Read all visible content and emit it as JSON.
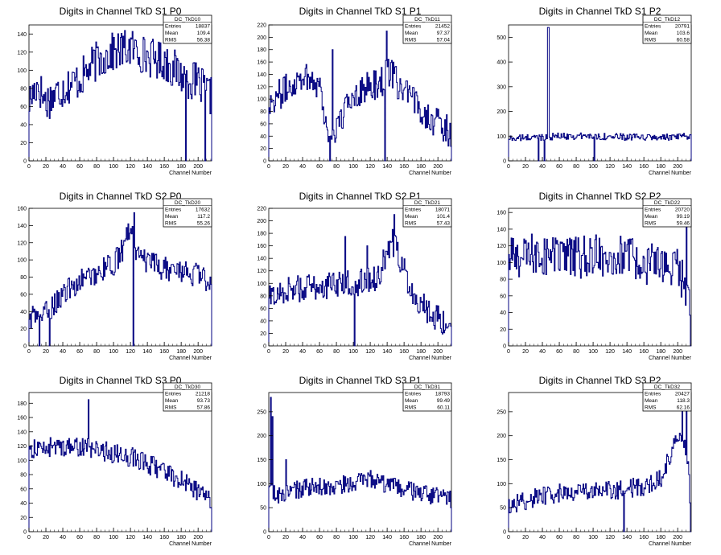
{
  "chart_data": [
    {
      "type": "histogram",
      "title": "Digits in Channel TkD S1 P0",
      "xlabel": "Channel Number",
      "xlim": [
        0,
        216
      ],
      "ylim": [
        0,
        150
      ],
      "xticks": [
        "0",
        "20",
        "40",
        "60",
        "80",
        "100",
        "120",
        "140",
        "160",
        "180",
        "200"
      ],
      "yticks": [
        "0",
        "20",
        "40",
        "60",
        "80",
        "100",
        "120",
        "140"
      ],
      "stats": {
        "name": "DC_TkD10",
        "rows": [
          [
            "Entries",
            "18837"
          ],
          [
            "Mean",
            "109.4"
          ],
          [
            "RMS",
            "56.38"
          ]
        ]
      },
      "series": [
        {
          "color": "#000080",
          "profile": [
            [
              0,
              65
            ],
            [
              10,
              85
            ],
            [
              20,
              65
            ],
            [
              40,
              80
            ],
            [
              60,
              90
            ],
            [
              80,
              110
            ],
            [
              100,
              120
            ],
            [
              120,
              125
            ],
            [
              140,
              115
            ],
            [
              160,
              110
            ],
            [
              180,
              95
            ],
            [
              200,
              85
            ],
            [
              216,
              70
            ]
          ],
          "amp": 22,
          "spikes": [
            [
              185,
              0
            ],
            [
              208,
              0
            ]
          ]
        }
      ]
    },
    {
      "type": "histogram",
      "title": "Digits in Channel TkD S1 P1",
      "xlabel": "Channel Number",
      "xlim": [
        0,
        216
      ],
      "ylim": [
        0,
        220
      ],
      "xticks": [
        "0",
        "20",
        "40",
        "60",
        "80",
        "100",
        "120",
        "140",
        "160",
        "180",
        "200"
      ],
      "yticks": [
        "0",
        "20",
        "40",
        "60",
        "80",
        "100",
        "120",
        "140",
        "160",
        "180",
        "200",
        "220"
      ],
      "stats": {
        "name": "DC_TkD11",
        "rows": [
          [
            "Entries",
            "21452"
          ],
          [
            "Mean",
            "97.37"
          ],
          [
            "RMS",
            "57.04"
          ]
        ]
      },
      "series": [
        {
          "color": "#000080",
          "profile": [
            [
              0,
              95
            ],
            [
              20,
              115
            ],
            [
              40,
              140
            ],
            [
              60,
              125
            ],
            [
              70,
              40
            ],
            [
              80,
              50
            ],
            [
              100,
              110
            ],
            [
              120,
              120
            ],
            [
              135,
              130
            ],
            [
              140,
              150
            ],
            [
              160,
              110
            ],
            [
              180,
              85
            ],
            [
              200,
              60
            ],
            [
              216,
              45
            ]
          ],
          "amp": 25,
          "spikes": [
            [
              72,
              0
            ],
            [
              137,
              0
            ],
            [
              139,
              210
            ],
            [
              75,
              180
            ]
          ]
        }
      ]
    },
    {
      "type": "histogram",
      "title": "Digits in Channel TkD S1 P2",
      "xlabel": "Channel Number",
      "xlim": [
        0,
        216
      ],
      "ylim": [
        0,
        550
      ],
      "xticks": [
        "0",
        "20",
        "40",
        "60",
        "80",
        "100",
        "120",
        "140",
        "160",
        "180",
        "200"
      ],
      "yticks": [
        "0",
        "100",
        "200",
        "300",
        "400",
        "500"
      ],
      "stats": {
        "name": "DC_TkD12",
        "rows": [
          [
            "Entries",
            "20791"
          ],
          [
            "Mean",
            "103.6"
          ],
          [
            "RMS",
            "60.58"
          ]
        ]
      },
      "series": [
        {
          "color": "#000080",
          "profile": [
            [
              0,
              90
            ],
            [
              30,
              95
            ],
            [
              60,
              100
            ],
            [
              100,
              100
            ],
            [
              150,
              95
            ],
            [
              200,
              95
            ],
            [
              216,
              100
            ]
          ],
          "amp": 14,
          "spikes": [
            [
              46,
              540
            ],
            [
              47,
              540
            ],
            [
              35,
              0
            ],
            [
              42,
              0
            ],
            [
              101,
              0
            ]
          ]
        }
      ]
    },
    {
      "type": "histogram",
      "title": "Digits in Channel TkD S2 P0",
      "xlabel": "Channel Number",
      "xlim": [
        0,
        216
      ],
      "ylim": [
        0,
        160
      ],
      "xticks": [
        "0",
        "20",
        "40",
        "60",
        "80",
        "100",
        "120",
        "140",
        "160",
        "180",
        "200"
      ],
      "yticks": [
        "0",
        "20",
        "40",
        "60",
        "80",
        "100",
        "120",
        "140",
        "160"
      ],
      "stats": {
        "name": "DC_TkD20",
        "rows": [
          [
            "Entries",
            "17632"
          ],
          [
            "Mean",
            "117.2"
          ],
          [
            "RMS",
            "55.26"
          ]
        ]
      },
      "series": [
        {
          "color": "#000080",
          "profile": [
            [
              0,
              32
            ],
            [
              20,
              38
            ],
            [
              40,
              60
            ],
            [
              60,
              75
            ],
            [
              80,
              85
            ],
            [
              100,
              95
            ],
            [
              110,
              110
            ],
            [
              120,
              140
            ],
            [
              130,
              100
            ],
            [
              160,
              90
            ],
            [
              190,
              85
            ],
            [
              216,
              75
            ]
          ],
          "amp": 14,
          "spikes": [
            [
              12,
              0
            ],
            [
              24,
              0
            ],
            [
              123,
              0
            ],
            [
              124,
              155
            ]
          ]
        }
      ]
    },
    {
      "type": "histogram",
      "title": "Digits in Channel TkD S2 P1",
      "xlabel": "Channel Number",
      "xlim": [
        0,
        216
      ],
      "ylim": [
        0,
        220
      ],
      "xticks": [
        "0",
        "20",
        "40",
        "60",
        "80",
        "100",
        "120",
        "140",
        "160",
        "180",
        "200"
      ],
      "yticks": [
        "0",
        "20",
        "40",
        "60",
        "80",
        "100",
        "120",
        "140",
        "160",
        "180",
        "200",
        "220"
      ],
      "stats": {
        "name": "DC_TkD21",
        "rows": [
          [
            "Entries",
            "18071"
          ],
          [
            "Mean",
            "101.4"
          ],
          [
            "RMS",
            "57.43"
          ]
        ]
      },
      "series": [
        {
          "color": "#000080",
          "profile": [
            [
              0,
              75
            ],
            [
              20,
              90
            ],
            [
              60,
              95
            ],
            [
              100,
              100
            ],
            [
              130,
              110
            ],
            [
              145,
              170
            ],
            [
              155,
              140
            ],
            [
              170,
              85
            ],
            [
              190,
              55
            ],
            [
              216,
              30
            ]
          ],
          "amp": 22,
          "spikes": [
            [
              101,
              0
            ],
            [
              148,
              210
            ],
            [
              90,
              175
            ],
            [
              116,
              160
            ]
          ]
        }
      ]
    },
    {
      "type": "histogram",
      "title": "Digits in Channel TkD S2 P2",
      "xlabel": "Channel Number",
      "xlim": [
        0,
        216
      ],
      "ylim": [
        0,
        165
      ],
      "xticks": [
        "0",
        "20",
        "40",
        "60",
        "80",
        "100",
        "120",
        "140",
        "160",
        "180",
        "200"
      ],
      "yticks": [
        "0",
        "20",
        "40",
        "60",
        "80",
        "100",
        "120",
        "140",
        "160"
      ],
      "stats": {
        "name": "DC_TkD22",
        "rows": [
          [
            "Entries",
            "20720"
          ],
          [
            "Mean",
            "99.19"
          ],
          [
            "RMS",
            "59.46"
          ]
        ]
      },
      "series": [
        {
          "color": "#000080",
          "profile": [
            [
              0,
              105
            ],
            [
              40,
              110
            ],
            [
              80,
              105
            ],
            [
              120,
              110
            ],
            [
              160,
              100
            ],
            [
              200,
              90
            ],
            [
              212,
              70
            ],
            [
              216,
              0
            ]
          ],
          "amp": 26,
          "spikes": [
            [
              210,
              160
            ],
            [
              215,
              0
            ]
          ]
        }
      ]
    },
    {
      "type": "histogram",
      "title": "Digits in Channel TkD S3 P0",
      "xlabel": "Channel Number",
      "xlim": [
        0,
        216
      ],
      "ylim": [
        0,
        195
      ],
      "xticks": [
        "0",
        "20",
        "40",
        "60",
        "80",
        "100",
        "120",
        "140",
        "160",
        "180",
        "200"
      ],
      "yticks": [
        "0",
        "20",
        "40",
        "60",
        "80",
        "100",
        "120",
        "140",
        "160",
        "180"
      ],
      "stats": {
        "name": "DC_TkD30",
        "rows": [
          [
            "Entries",
            "21218"
          ],
          [
            "Mean",
            "93.73"
          ],
          [
            "RMS",
            "57.86"
          ]
        ]
      },
      "series": [
        {
          "color": "#000080",
          "profile": [
            [
              0,
              115
            ],
            [
              40,
              120
            ],
            [
              80,
              115
            ],
            [
              120,
              105
            ],
            [
              160,
              85
            ],
            [
              190,
              65
            ],
            [
              216,
              45
            ]
          ],
          "amp": 14,
          "spikes": [
            [
              70,
              185
            ]
          ]
        }
      ]
    },
    {
      "type": "histogram",
      "title": "Digits in Channel TkD S3 P1",
      "xlabel": "Channel Number",
      "xlim": [
        0,
        216
      ],
      "ylim": [
        0,
        290
      ],
      "xticks": [
        "0",
        "20",
        "40",
        "60",
        "80",
        "100",
        "120",
        "140",
        "160",
        "180",
        "200"
      ],
      "yticks": [
        "0",
        "50",
        "100",
        "150",
        "200",
        "250"
      ],
      "stats": {
        "name": "DC_TkD31",
        "rows": [
          [
            "Entries",
            "18793"
          ],
          [
            "Mean",
            "99.49"
          ],
          [
            "RMS",
            "60.11"
          ]
        ]
      },
      "series": [
        {
          "color": "#000080",
          "profile": [
            [
              0,
              85
            ],
            [
              10,
              75
            ],
            [
              40,
              90
            ],
            [
              80,
              95
            ],
            [
              100,
              100
            ],
            [
              120,
              110
            ],
            [
              140,
              95
            ],
            [
              180,
              80
            ],
            [
              216,
              65
            ]
          ],
          "amp": 20,
          "spikes": [
            [
              2,
              280
            ],
            [
              4,
              240
            ],
            [
              20,
              150
            ]
          ]
        }
      ]
    },
    {
      "type": "histogram",
      "title": "Digits in Channel TkD S3 P2",
      "xlabel": "Channel Number",
      "xlim": [
        0,
        216
      ],
      "ylim": [
        0,
        290
      ],
      "xticks": [
        "0",
        "20",
        "40",
        "60",
        "80",
        "100",
        "120",
        "140",
        "160",
        "180",
        "200"
      ],
      "yticks": [
        "0",
        "50",
        "100",
        "150",
        "200",
        "250"
      ],
      "stats": {
        "name": "DC_TkD32",
        "rows": [
          [
            "Entries",
            "20427"
          ],
          [
            "Mean",
            "118.3"
          ],
          [
            "RMS",
            "62.16"
          ]
        ]
      },
      "series": [
        {
          "color": "#000080",
          "profile": [
            [
              0,
              55
            ],
            [
              40,
              75
            ],
            [
              80,
              85
            ],
            [
              120,
              85
            ],
            [
              160,
              95
            ],
            [
              180,
              110
            ],
            [
              195,
              180
            ],
            [
              205,
              200
            ],
            [
              213,
              150
            ],
            [
              216,
              0
            ]
          ],
          "amp": 20,
          "spikes": [
            [
              136,
              0
            ],
            [
              205,
              250
            ],
            [
              210,
              270
            ],
            [
              215,
              0
            ]
          ]
        }
      ]
    }
  ]
}
